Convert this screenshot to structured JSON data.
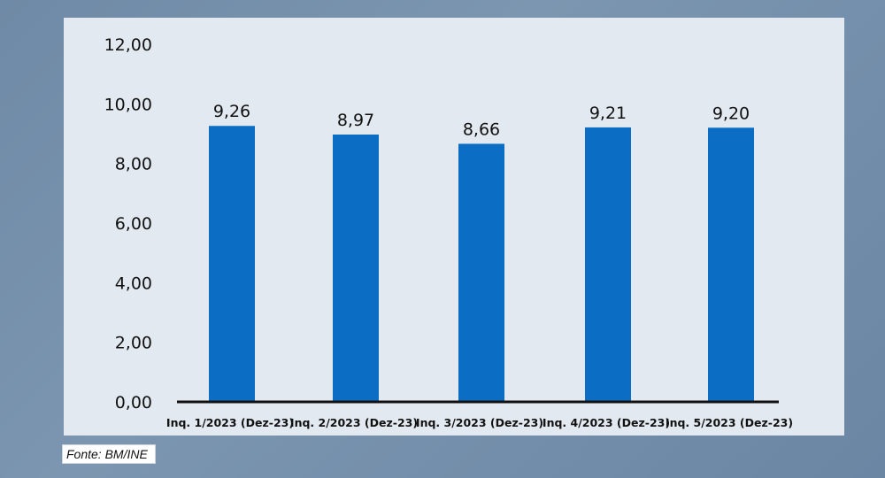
{
  "chart_data": {
    "type": "bar",
    "title": "",
    "xlabel": "",
    "ylabel": "",
    "categories": [
      "Inq. 1/2023 (Dez-23)",
      "Inq. 2/2023 (Dez-23)",
      "Inq. 3/2023 (Dez-23)",
      "Inq. 4/2023 (Dez-23)",
      "Inq. 5/2023 (Dez-23)"
    ],
    "values": [
      9.26,
      8.97,
      8.66,
      9.21,
      9.2
    ],
    "data_labels": [
      "9,26",
      "8,97",
      "8,66",
      "9,21",
      "9,20"
    ],
    "ylim": [
      0,
      12
    ],
    "yticks": [
      0,
      2,
      4,
      6,
      8,
      10,
      12
    ],
    "ytick_labels": [
      "0,00",
      "2,00",
      "4,00",
      "6,00",
      "8,00",
      "10,00",
      "12,00"
    ],
    "grid": false,
    "bar_color": "#0b6ec4"
  },
  "source": "Fonte: BM/INE"
}
